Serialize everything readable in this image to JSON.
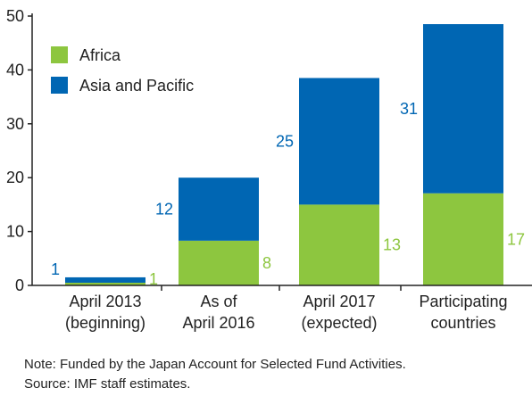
{
  "chart_data": {
    "type": "bar",
    "stacked": true,
    "categories": [
      [
        "April 2013",
        "(beginning)"
      ],
      [
        "As of",
        "April 2016"
      ],
      [
        "April 2017",
        "(expected)"
      ],
      [
        "Participating",
        "countries"
      ]
    ],
    "series": [
      {
        "name": "Africa",
        "values": [
          1,
          8,
          13,
          17
        ],
        "color": "#8dc63f"
      },
      {
        "name": "Asia and Pacific",
        "values": [
          1,
          12,
          25,
          31
        ],
        "color": "#0066b3"
      }
    ],
    "bar_totals": [
      1.5,
      20,
      38.5,
      48.5
    ],
    "africa_heights": [
      0.5,
      8.3,
      15,
      17.1
    ],
    "yticks": [
      0,
      10,
      20,
      30,
      40,
      50
    ],
    "ylim": [
      0,
      50
    ],
    "legend_position": "top-left",
    "grid": false
  },
  "notes": {
    "note": "Note: Funded by the Japan Account for Selected Fund Activities.",
    "source": "Source: IMF staff estimates."
  }
}
